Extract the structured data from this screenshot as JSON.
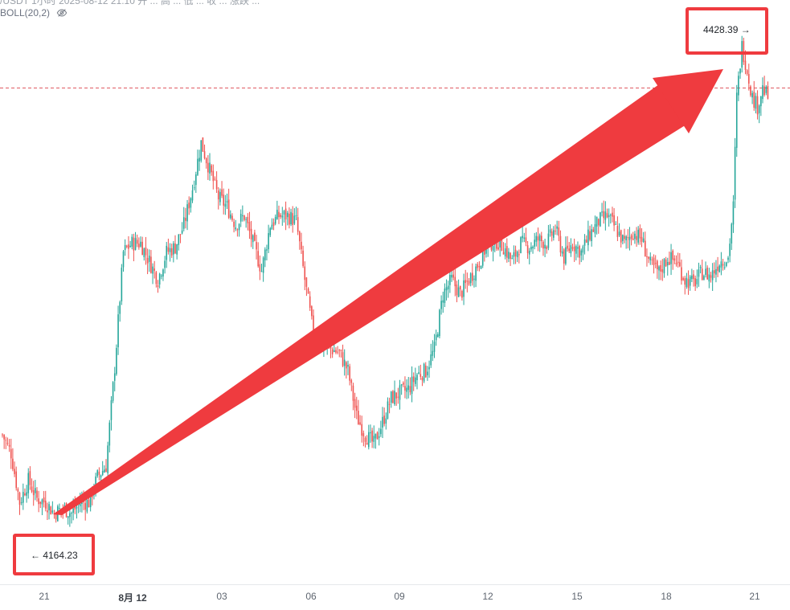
{
  "header": {
    "ticker_line": "/USDT 1小时  2025-08-12 21:10  开  ...  高  ...  低  ...  收  ...  涨跌 ...",
    "indicator_label": "BOLL(20,2)"
  },
  "colors": {
    "up": "#26a69a",
    "down": "#ef5350",
    "arrow": "#ef3b3f",
    "dashed_line": "#e05a62"
  },
  "icons": {
    "visibility": "eye-slash-icon"
  },
  "chart_data": {
    "type": "candlestick",
    "x_ticks": [
      "21",
      "8月 12",
      "03",
      "06",
      "09",
      "12",
      "15",
      "18",
      "21"
    ],
    "y_range": [
      4145,
      4440
    ],
    "reference_price_line": 4405,
    "annotations": {
      "low": "← 4164.23",
      "high": "4428.39 →"
    },
    "waypoints": [
      [
        0,
        4215
      ],
      [
        5,
        4205
      ],
      [
        10,
        4178
      ],
      [
        15,
        4190
      ],
      [
        20,
        4180
      ],
      [
        25,
        4178
      ],
      [
        30,
        4172
      ],
      [
        35,
        4175
      ],
      [
        40,
        4172
      ],
      [
        45,
        4178
      ],
      [
        50,
        4178
      ],
      [
        55,
        4192
      ],
      [
        60,
        4198
      ],
      [
        65,
        4252
      ],
      [
        70,
        4315
      ],
      [
        75,
        4320
      ],
      [
        80,
        4320
      ],
      [
        85,
        4310
      ],
      [
        90,
        4300
      ],
      [
        95,
        4315
      ],
      [
        100,
        4318
      ],
      [
        105,
        4330
      ],
      [
        110,
        4350
      ],
      [
        115,
        4375
      ],
      [
        120,
        4360
      ],
      [
        125,
        4345
      ],
      [
        130,
        4340
      ],
      [
        135,
        4330
      ],
      [
        140,
        4335
      ],
      [
        145,
        4320
      ],
      [
        150,
        4305
      ],
      [
        155,
        4330
      ],
      [
        160,
        4335
      ],
      [
        165,
        4335
      ],
      [
        170,
        4332
      ],
      [
        175,
        4300
      ],
      [
        180,
        4270
      ],
      [
        185,
        4265
      ],
      [
        190,
        4262
      ],
      [
        195,
        4260
      ],
      [
        200,
        4250
      ],
      [
        205,
        4225
      ],
      [
        210,
        4215
      ],
      [
        215,
        4210
      ],
      [
        220,
        4222
      ],
      [
        225,
        4235
      ],
      [
        230,
        4238
      ],
      [
        235,
        4240
      ],
      [
        240,
        4248
      ],
      [
        245,
        4250
      ],
      [
        250,
        4262
      ],
      [
        255,
        4292
      ],
      [
        260,
        4300
      ],
      [
        265,
        4292
      ],
      [
        270,
        4300
      ],
      [
        275,
        4308
      ],
      [
        280,
        4318
      ],
      [
        285,
        4322
      ],
      [
        290,
        4318
      ],
      [
        295,
        4310
      ],
      [
        300,
        4320
      ],
      [
        305,
        4318
      ],
      [
        310,
        4322
      ],
      [
        315,
        4320
      ],
      [
        320,
        4328
      ],
      [
        325,
        4312
      ],
      [
        330,
        4320
      ],
      [
        335,
        4315
      ],
      [
        340,
        4325
      ],
      [
        345,
        4332
      ],
      [
        350,
        4335
      ],
      [
        355,
        4328
      ],
      [
        360,
        4320
      ],
      [
        365,
        4326
      ],
      [
        370,
        4322
      ],
      [
        375,
        4308
      ],
      [
        380,
        4304
      ],
      [
        385,
        4312
      ],
      [
        390,
        4310
      ],
      [
        395,
        4300
      ],
      [
        400,
        4298
      ],
      [
        405,
        4304
      ],
      [
        410,
        4302
      ],
      [
        415,
        4310
      ],
      [
        420,
        4312
      ],
      [
        423,
        4340
      ],
      [
        425,
        4400
      ],
      [
        428,
        4428
      ],
      [
        431,
        4415
      ],
      [
        434,
        4400
      ],
      [
        437,
        4395
      ],
      [
        440,
        4405
      ],
      [
        443,
        4400
      ]
    ]
  }
}
